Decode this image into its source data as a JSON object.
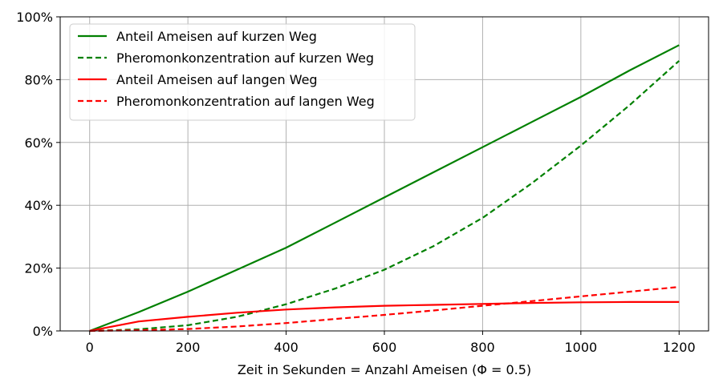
{
  "chart_data": {
    "type": "line",
    "title": "",
    "xlabel": "Zeit in Sekunden = Anzahl Ameisen (Φ = 0.5)",
    "ylabel": "",
    "xlim": [
      -60,
      1260
    ],
    "ylim": [
      0,
      100
    ],
    "x_ticks": [
      0,
      200,
      400,
      600,
      800,
      1000,
      1200
    ],
    "x_tick_labels": [
      "0",
      "200",
      "400",
      "600",
      "800",
      "1000",
      "1200"
    ],
    "y_ticks": [
      0,
      20,
      40,
      60,
      80,
      100
    ],
    "y_tick_labels": [
      "0%",
      "20%",
      "40%",
      "60%",
      "80%",
      "100%"
    ],
    "grid": true,
    "legend_position": "top-left",
    "x": [
      0,
      100,
      200,
      300,
      400,
      500,
      600,
      700,
      800,
      900,
      1000,
      1100,
      1200
    ],
    "series": [
      {
        "name": "Anteil Ameisen auf kurzen Weg",
        "color": "#008000",
        "style": "solid",
        "values": [
          0,
          6,
          12.5,
          19.5,
          26.5,
          34.5,
          42.5,
          50.5,
          58.5,
          66.5,
          74.5,
          83,
          91
        ]
      },
      {
        "name": "Pheromonkonzentration auf kurzen Weg",
        "color": "#008000",
        "style": "dashed",
        "values": [
          0,
          0.5,
          1.8,
          4.5,
          8.5,
          13.5,
          19.5,
          27,
          36,
          47,
          59,
          72,
          86
        ]
      },
      {
        "name": "Anteil Ameisen auf langen Weg",
        "color": "#ff0000",
        "style": "solid",
        "values": [
          0,
          3,
          4.5,
          5.8,
          6.8,
          7.5,
          8,
          8.3,
          8.6,
          8.9,
          9.1,
          9.2,
          9.2
        ]
      },
      {
        "name": "Pheromonkonzentration auf langen Weg",
        "color": "#ff0000",
        "style": "dashed",
        "values": [
          0,
          0.2,
          0.6,
          1.4,
          2.5,
          3.8,
          5.1,
          6.5,
          8,
          9.5,
          11,
          12.5,
          14
        ]
      }
    ]
  }
}
